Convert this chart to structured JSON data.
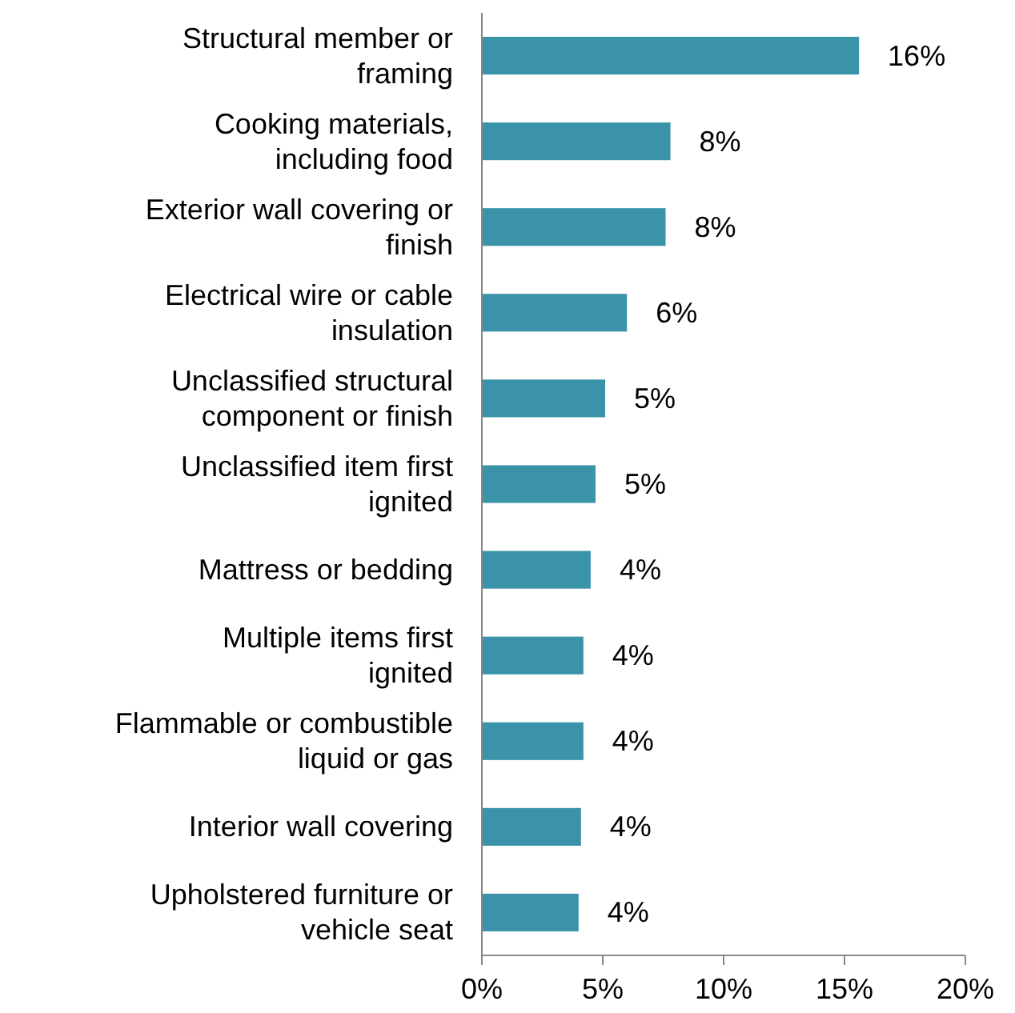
{
  "chart_data": {
    "type": "bar",
    "orientation": "horizontal",
    "categories": [
      "Structural member or framing",
      "Cooking materials, including food",
      "Exterior wall covering or finish",
      "Electrical wire or cable insulation",
      "Unclassified structural component or finish",
      "Unclassified item first ignited",
      "Mattress or bedding",
      "Multiple items first ignited",
      "Flammable or combustible liquid or gas",
      "Interior wall covering",
      "Upholstered furniture or vehicle seat"
    ],
    "values": [
      15.6,
      7.8,
      7.6,
      6.0,
      5.1,
      4.7,
      4.5,
      4.2,
      4.2,
      4.1,
      4.0
    ],
    "value_labels": [
      "16%",
      "8%",
      "8%",
      "6%",
      "5%",
      "5%",
      "4%",
      "4%",
      "4%",
      "4%",
      "4%"
    ],
    "color": "#3a93a8",
    "xlim": [
      0,
      20
    ],
    "xticks": [
      {
        "value": 0,
        "label": "0%"
      },
      {
        "value": 5,
        "label": "5%"
      },
      {
        "value": 10,
        "label": "10%"
      },
      {
        "value": 15,
        "label": "15%"
      },
      {
        "value": 20,
        "label": "20%"
      }
    ],
    "grid": false
  }
}
